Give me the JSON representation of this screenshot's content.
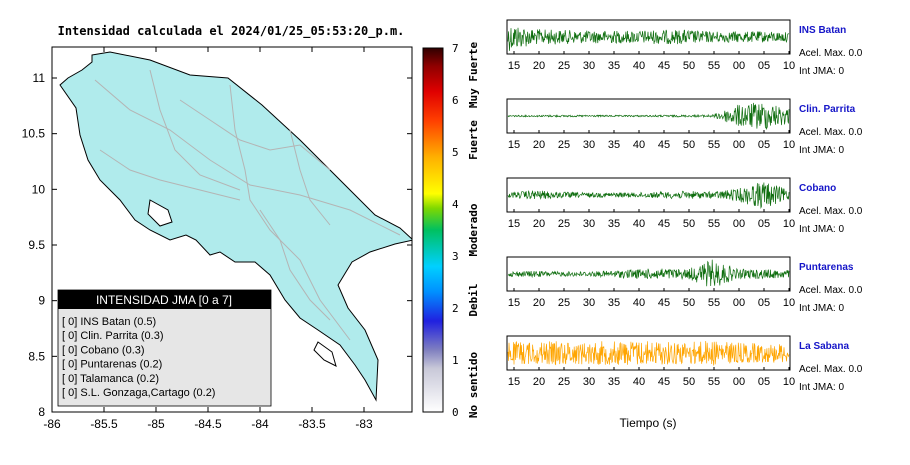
{
  "map": {
    "title": "Intensidad calculada el 2024/01/25_05:53:20_p.m.",
    "x_ticks": [
      "-86",
      "-85.5",
      "-85",
      "-84.5",
      "-84",
      "-83.5",
      "-83"
    ],
    "y_ticks": [
      "11",
      "10.5",
      "10",
      "9.5",
      "9",
      "8.5",
      "8"
    ],
    "legend_title": "INTENSIDAD JMA [0 a 7]",
    "legend_items": [
      "[ 0]  INS Batan (0.5)",
      "[ 0]  Clin. Parrita (0.3)",
      "[ 0]  Cobano (0.3)",
      "[ 0]  Puntarenas (0.2)",
      "[ 0]  Talamanca (0.2)",
      "[ 0]  S.L. Gonzaga,Cartago (0.2)"
    ],
    "colors": {
      "land": "#b0ebec",
      "border": "#000000",
      "roads": "#b4b4b4"
    }
  },
  "colorbar": {
    "ticks": [
      "0",
      "1",
      "2",
      "3",
      "4",
      "5",
      "6",
      "7"
    ],
    "labels": [
      "No sentido",
      "Debil",
      "Moderado",
      "Fuerte",
      "Muy Fuerte"
    ]
  },
  "chart_data": [
    {
      "type": "line",
      "station": "INS Batan",
      "acel_max": "Acel. Max. 0.0",
      "int_jma": "Int JMA: 0",
      "color": "#0f6e0f",
      "x_ticks": [
        "15",
        "20",
        "25",
        "30",
        "35",
        "40",
        "45",
        "50",
        "55",
        "00",
        "05",
        "10"
      ],
      "envelope": [
        0.9,
        0.5,
        0.45,
        0.4,
        0.4,
        0.4,
        0.45,
        0.45,
        0.35,
        0.35,
        0.35,
        0.3
      ]
    },
    {
      "type": "line",
      "station": "Clin. Parrita",
      "acel_max": "Acel. Max. 0.0",
      "int_jma": "Int JMA: 0",
      "color": "#0f6e0f",
      "x_ticks": [
        "15",
        "20",
        "25",
        "30",
        "35",
        "40",
        "45",
        "50",
        "55",
        "00",
        "05",
        "10"
      ],
      "envelope": [
        0.05,
        0.05,
        0.06,
        0.05,
        0.05,
        0.05,
        0.06,
        0.06,
        0.08,
        0.7,
        0.9,
        0.5
      ]
    },
    {
      "type": "line",
      "station": "Cobano",
      "acel_max": "Acel. Max. 0.0",
      "int_jma": "Int JMA: 0",
      "color": "#0f6e0f",
      "x_ticks": [
        "15",
        "20",
        "25",
        "30",
        "35",
        "40",
        "45",
        "50",
        "55",
        "00",
        "05",
        "10"
      ],
      "envelope": [
        0.15,
        0.3,
        0.2,
        0.15,
        0.15,
        0.15,
        0.2,
        0.25,
        0.2,
        0.4,
        0.9,
        0.3
      ]
    },
    {
      "type": "line",
      "station": "Puntarenas",
      "acel_max": "Acel. Max. 0.0",
      "int_jma": "Int JMA: 0",
      "color": "#0f6e0f",
      "x_ticks": [
        "15",
        "20",
        "25",
        "30",
        "35",
        "40",
        "45",
        "50",
        "55",
        "00",
        "05",
        "10"
      ],
      "envelope": [
        0.15,
        0.2,
        0.15,
        0.15,
        0.2,
        0.3,
        0.35,
        0.3,
        0.9,
        0.3,
        0.3,
        0.25
      ]
    },
    {
      "type": "line",
      "station": "La Sabana",
      "acel_max": "Acel. Max. 0.0",
      "int_jma": "Int JMA: 0",
      "color": "#ffa500",
      "x_ticks": [
        "15",
        "20",
        "25",
        "30",
        "35",
        "40",
        "45",
        "50",
        "55",
        "00",
        "05",
        "10"
      ],
      "envelope": [
        0.75,
        0.7,
        0.75,
        0.7,
        0.75,
        0.8,
        0.75,
        0.7,
        0.8,
        0.65,
        0.6,
        0.6
      ]
    }
  ],
  "waveform_xlabel": "Tiempo (s)"
}
